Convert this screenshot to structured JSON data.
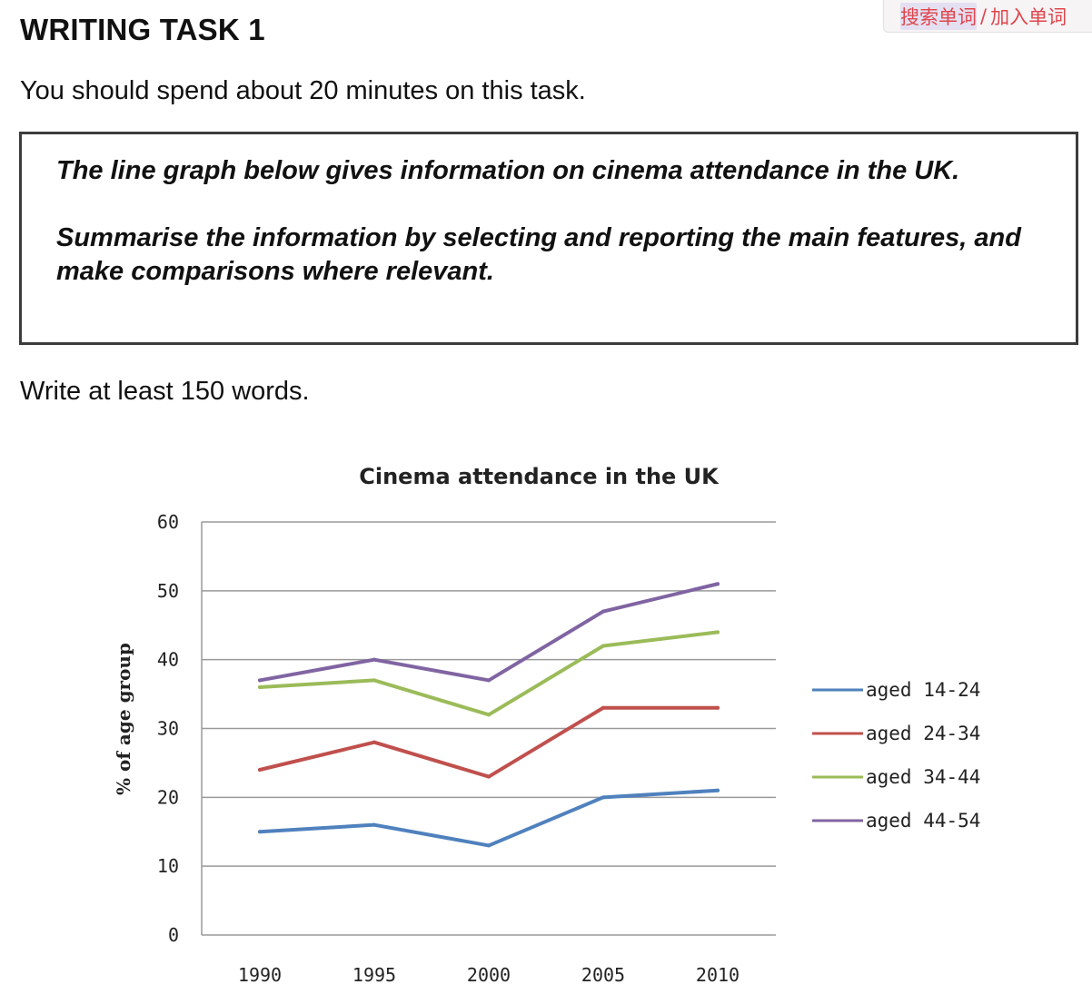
{
  "dictionary_bar": {
    "search_label": "搜索单词",
    "separator": "/",
    "add_label": "加入单词"
  },
  "task": {
    "title": "WRITING TASK 1",
    "instruction": "You should spend about 20 minutes on this task.",
    "prompt_line1": "The line graph below gives information on cinema attendance in the UK.",
    "prompt_line2": "Summarise the information by selecting and reporting the main features, and make comparisons where relevant.",
    "word_count": "Write at least 150 words."
  },
  "chart_data": {
    "type": "line",
    "title": "Cinema attendance in the UK",
    "xlabel": "",
    "ylabel": "% of age group",
    "x": [
      "1990",
      "1995",
      "2000",
      "2005",
      "2010"
    ],
    "yticks": [
      "0",
      "10",
      "20",
      "30",
      "40",
      "50",
      "60"
    ],
    "ylim": [
      0,
      60
    ],
    "grid": "horizontal",
    "legend_position": "right",
    "series": [
      {
        "name": "aged 14-24",
        "color": "#4f81bd",
        "values": [
          15,
          16,
          13,
          20,
          21
        ]
      },
      {
        "name": "aged 24-34",
        "color": "#c0504d",
        "values": [
          24,
          28,
          23,
          33,
          33
        ]
      },
      {
        "name": "aged 34-44",
        "color": "#9bbb59",
        "values": [
          36,
          37,
          32,
          42,
          44
        ]
      },
      {
        "name": "aged 44-54",
        "color": "#8064a2",
        "values": [
          37,
          40,
          37,
          47,
          51
        ]
      }
    ]
  }
}
